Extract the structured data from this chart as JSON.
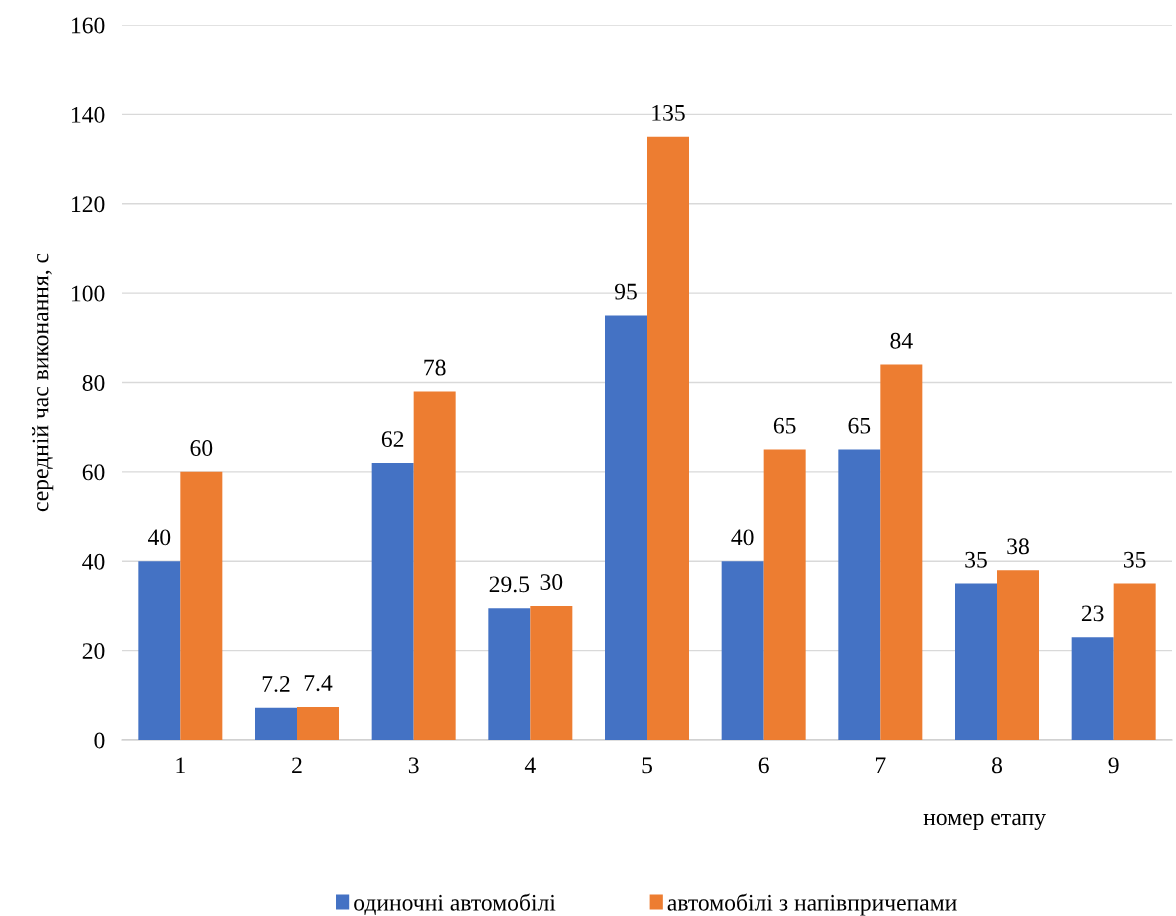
{
  "chart_data": {
    "type": "bar",
    "categories": [
      "1",
      "2",
      "3",
      "4",
      "5",
      "6",
      "7",
      "8",
      "9"
    ],
    "series": [
      {
        "name": "одиночні автомобілі",
        "color": "#4472c4",
        "values": [
          40,
          7.2,
          62,
          29.5,
          95,
          40,
          65,
          35,
          23
        ]
      },
      {
        "name": "автомобілі з напівпричепами",
        "color": "#ed7d31",
        "values": [
          60,
          7.4,
          78,
          30,
          135,
          65,
          84,
          38,
          35
        ]
      }
    ],
    "xlabel": "номер етапу",
    "ylabel": "середній час виконання, с",
    "ylim": [
      0,
      160
    ],
    "yticks": [
      0,
      20,
      40,
      60,
      80,
      100,
      120,
      140,
      160
    ],
    "grid": "y",
    "legend": "bottom",
    "data_labels": true
  }
}
